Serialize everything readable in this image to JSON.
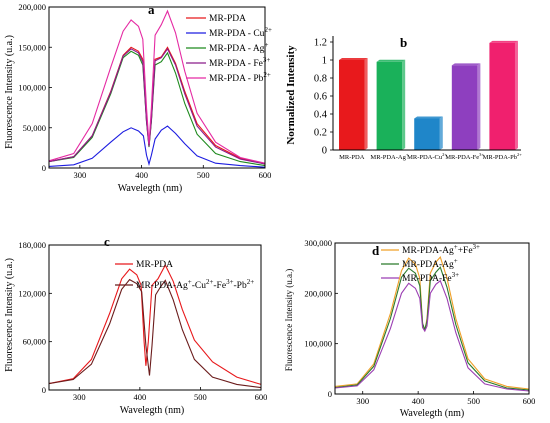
{
  "chart_data": [
    {
      "panel_label": "a",
      "type": "line",
      "xlabel": "Wavelegth (nm)",
      "ylabel": "Fluorescence Intensity (u.a.)",
      "xlim": [
        250,
        600
      ],
      "ylim": [
        0,
        200000
      ],
      "x_ticks": [
        "300",
        "400",
        "500",
        "600"
      ],
      "y_ticks": [
        "0",
        "50,000",
        "100,000",
        "150,000",
        "200,000"
      ],
      "legend_position": "top-right",
      "series": [
        {
          "name": "MR-PDA",
          "color": "#e8191c",
          "points": [
            [
              250,
              8000
            ],
            [
              290,
              14000
            ],
            [
              320,
              40000
            ],
            [
              350,
              95000
            ],
            [
              370,
              140000
            ],
            [
              383,
              150000
            ],
            [
              395,
              145000
            ],
            [
              402,
              135000
            ],
            [
              408,
              60000
            ],
            [
              412,
              28000
            ],
            [
              416,
              60000
            ],
            [
              422,
              135000
            ],
            [
              432,
              138000
            ],
            [
              442,
              150000
            ],
            [
              455,
              130000
            ],
            [
              470,
              95000
            ],
            [
              490,
              55000
            ],
            [
              520,
              28000
            ],
            [
              560,
              12000
            ],
            [
              600,
              5000
            ]
          ]
        },
        {
          "name": "MR-PDA - Cu",
          "sup": "2+",
          "color": "#1d1de0",
          "points": [
            [
              250,
              2000
            ],
            [
              290,
              4000
            ],
            [
              320,
              12000
            ],
            [
              350,
              32000
            ],
            [
              370,
              45000
            ],
            [
              383,
              50000
            ],
            [
              395,
              46000
            ],
            [
              403,
              40000
            ],
            [
              408,
              16000
            ],
            [
              412,
              5000
            ],
            [
              416,
              16000
            ],
            [
              422,
              36000
            ],
            [
              432,
              47000
            ],
            [
              442,
              52000
            ],
            [
              455,
              43000
            ],
            [
              470,
              30000
            ],
            [
              490,
              15000
            ],
            [
              520,
              6000
            ],
            [
              560,
              3000
            ],
            [
              600,
              1000
            ]
          ]
        },
        {
          "name": "MR-PDA - Ag",
          "sup": "+",
          "color": "#1e8a1e",
          "points": [
            [
              250,
              8000
            ],
            [
              290,
              13000
            ],
            [
              320,
              38000
            ],
            [
              350,
              92000
            ],
            [
              370,
              137000
            ],
            [
              383,
              145000
            ],
            [
              395,
              140000
            ],
            [
              402,
              128000
            ],
            [
              408,
              58000
            ],
            [
              412,
              26000
            ],
            [
              416,
              58000
            ],
            [
              422,
              128000
            ],
            [
              432,
              132000
            ],
            [
              442,
              143000
            ],
            [
              455,
              118000
            ],
            [
              470,
              80000
            ],
            [
              490,
              42000
            ],
            [
              520,
              18000
            ],
            [
              560,
              8000
            ],
            [
              600,
              3000
            ]
          ]
        },
        {
          "name": "MR-PDA - Fe",
          "sup": "3+",
          "color": "#8b1c8b",
          "points": [
            [
              250,
              8000
            ],
            [
              290,
              14000
            ],
            [
              320,
              40000
            ],
            [
              350,
              94000
            ],
            [
              370,
              139000
            ],
            [
              383,
              148000
            ],
            [
              395,
              143000
            ],
            [
              402,
              132000
            ],
            [
              408,
              58000
            ],
            [
              412,
              27000
            ],
            [
              416,
              60000
            ],
            [
              422,
              133000
            ],
            [
              432,
              137000
            ],
            [
              442,
              148000
            ],
            [
              455,
              128000
            ],
            [
              470,
              92000
            ],
            [
              490,
              52000
            ],
            [
              520,
              26000
            ],
            [
              560,
              11000
            ],
            [
              600,
              5000
            ]
          ]
        },
        {
          "name": "MR-PDA - Pb",
          "sup": "2+",
          "color": "#e52aa3",
          "points": [
            [
              250,
              9000
            ],
            [
              290,
              18000
            ],
            [
              320,
              55000
            ],
            [
              350,
              125000
            ],
            [
              370,
              170000
            ],
            [
              383,
              184000
            ],
            [
              395,
              176000
            ],
            [
              402,
              160000
            ],
            [
              408,
              75000
            ],
            [
              412,
              30000
            ],
            [
              416,
              75000
            ],
            [
              422,
              165000
            ],
            [
              432,
              178000
            ],
            [
              442,
              195000
            ],
            [
              455,
              168000
            ],
            [
              470,
              120000
            ],
            [
              490,
              68000
            ],
            [
              520,
              32000
            ],
            [
              560,
              13000
            ],
            [
              600,
              6000
            ]
          ]
        }
      ]
    },
    {
      "panel_label": "b",
      "type": "bar",
      "ylabel": "Normalized Intensity",
      "ylim": [
        0,
        1.2
      ],
      "y_ticks": [
        "0",
        "0.2",
        "0.4",
        "0.6",
        "0.8",
        "1",
        "1.2"
      ],
      "categories": [
        {
          "base": "MR-PDA",
          "sup": ""
        },
        {
          "base": "MR-PDA-Ag",
          "sup": "+"
        },
        {
          "base": "MR-PDA-Cu",
          "sup": "2+"
        },
        {
          "base": "MR-PDA-Fe",
          "sup": "3+"
        },
        {
          "base": "MR-PDA-Pb",
          "sup": "2+"
        }
      ],
      "values": [
        1.0,
        0.98,
        0.35,
        0.94,
        1.19
      ],
      "colors": [
        "#e8191c",
        "#1ab15a",
        "#1f86c9",
        "#8e3fbf",
        "#f0206e"
      ]
    },
    {
      "panel_label": "c",
      "type": "line",
      "xlabel": "Wavelegth (nm)",
      "ylabel": "Fluorescence Intensity (u.a.)",
      "xlim": [
        250,
        600
      ],
      "ylim": [
        0,
        180000
      ],
      "x_ticks": [
        "300",
        "400",
        "500",
        "600"
      ],
      "y_ticks": [
        "0",
        "60,000",
        "120,000",
        "180,000"
      ],
      "legend_position": "top-right",
      "series": [
        {
          "name": "MR-PDA",
          "color": "#e8191c",
          "points": [
            [
              250,
              8000
            ],
            [
              290,
              14000
            ],
            [
              320,
              38000
            ],
            [
              350,
              95000
            ],
            [
              370,
              138000
            ],
            [
              383,
              150000
            ],
            [
              395,
              143000
            ],
            [
              402,
              130000
            ],
            [
              407,
              60000
            ],
            [
              410,
              30000
            ],
            [
              414,
              60000
            ],
            [
              420,
              130000
            ],
            [
              430,
              138000
            ],
            [
              442,
              155000
            ],
            [
              455,
              135000
            ],
            [
              470,
              100000
            ],
            [
              490,
              62000
            ],
            [
              520,
              35000
            ],
            [
              560,
              16000
            ],
            [
              600,
              7000
            ]
          ]
        },
        {
          "name": "MR-PDA-Ag",
          "legend_parts": [
            [
              "MR-PDA-Ag",
              ""
            ],
            [
              "",
              "+"
            ],
            [
              "-Cu",
              ""
            ],
            [
              "",
              "2+"
            ],
            [
              "-Fe",
              ""
            ],
            [
              "",
              "3+"
            ],
            [
              "-Pb",
              ""
            ],
            [
              "",
              "2+"
            ]
          ],
          "color": "#6b1c1c",
          "points": [
            [
              250,
              8000
            ],
            [
              290,
              13000
            ],
            [
              320,
              32000
            ],
            [
              350,
              82000
            ],
            [
              370,
              125000
            ],
            [
              383,
              137000
            ],
            [
              395,
              132000
            ],
            [
              403,
              122000
            ],
            [
              410,
              55000
            ],
            [
              416,
              18000
            ],
            [
              420,
              55000
            ],
            [
              426,
              118000
            ],
            [
              434,
              128000
            ],
            [
              442,
              136000
            ],
            [
              455,
              112000
            ],
            [
              470,
              75000
            ],
            [
              490,
              38000
            ],
            [
              520,
              16000
            ],
            [
              560,
              7000
            ],
            [
              600,
              3000
            ]
          ]
        }
      ]
    },
    {
      "panel_label": "d",
      "type": "line",
      "xlabel": "Wavelegth (nm)",
      "ylabel": "Fluorescence Intensity (u.a.)",
      "xlim": [
        250,
        600
      ],
      "ylim": [
        0,
        300000
      ],
      "x_ticks": [
        "300",
        "400",
        "500",
        "600"
      ],
      "y_ticks": [
        "0",
        "100,000",
        "200,000",
        "300,000"
      ],
      "legend_position": "top-right",
      "series": [
        {
          "name": "MR-PDA-Ag",
          "legend_parts": [
            [
              "MR-PDA-Ag",
              ""
            ],
            [
              "",
              "+"
            ],
            [
              "+Fe",
              ""
            ],
            [
              "",
              "3+"
            ]
          ],
          "color": "#f0a028",
          "points": [
            [
              250,
              15000
            ],
            [
              290,
              20000
            ],
            [
              320,
              60000
            ],
            [
              350,
              160000
            ],
            [
              370,
              245000
            ],
            [
              383,
              270000
            ],
            [
              395,
              258000
            ],
            [
              403,
              230000
            ],
            [
              408,
              140000
            ],
            [
              412,
              125000
            ],
            [
              416,
              150000
            ],
            [
              422,
              240000
            ],
            [
              432,
              262000
            ],
            [
              440,
              272000
            ],
            [
              452,
              230000
            ],
            [
              468,
              150000
            ],
            [
              490,
              70000
            ],
            [
              520,
              30000
            ],
            [
              560,
              15000
            ],
            [
              600,
              10000
            ]
          ]
        },
        {
          "name": "MR-PDA-Ag",
          "legend_parts": [
            [
              "MR-PDA-Ag",
              ""
            ],
            [
              "",
              "+"
            ]
          ],
          "color": "#2a7a2a",
          "points": [
            [
              250,
              13000
            ],
            [
              290,
              18000
            ],
            [
              320,
              55000
            ],
            [
              350,
              150000
            ],
            [
              370,
              232000
            ],
            [
              383,
              250000
            ],
            [
              395,
              240000
            ],
            [
              403,
              215000
            ],
            [
              408,
              140000
            ],
            [
              412,
              128000
            ],
            [
              416,
              145000
            ],
            [
              422,
              225000
            ],
            [
              432,
              242000
            ],
            [
              440,
              252000
            ],
            [
              452,
              212000
            ],
            [
              468,
              138000
            ],
            [
              490,
              62000
            ],
            [
              520,
              26000
            ],
            [
              560,
              12000
            ],
            [
              600,
              8000
            ]
          ]
        },
        {
          "name": "MR-PDA-Fe",
          "legend_parts": [
            [
              "MR-PDA-Fe",
              ""
            ],
            [
              "",
              "3+"
            ]
          ],
          "color": "#9b3fb3",
          "points": [
            [
              250,
              12000
            ],
            [
              290,
              16000
            ],
            [
              320,
              48000
            ],
            [
              350,
              130000
            ],
            [
              370,
              200000
            ],
            [
              383,
              220000
            ],
            [
              395,
              210000
            ],
            [
              403,
              190000
            ],
            [
              408,
              132000
            ],
            [
              412,
              125000
            ],
            [
              416,
              135000
            ],
            [
              422,
              200000
            ],
            [
              432,
              218000
            ],
            [
              440,
              225000
            ],
            [
              452,
              190000
            ],
            [
              468,
              122000
            ],
            [
              490,
              52000
            ],
            [
              520,
              20000
            ],
            [
              560,
              10000
            ],
            [
              600,
              6000
            ]
          ]
        }
      ]
    }
  ]
}
